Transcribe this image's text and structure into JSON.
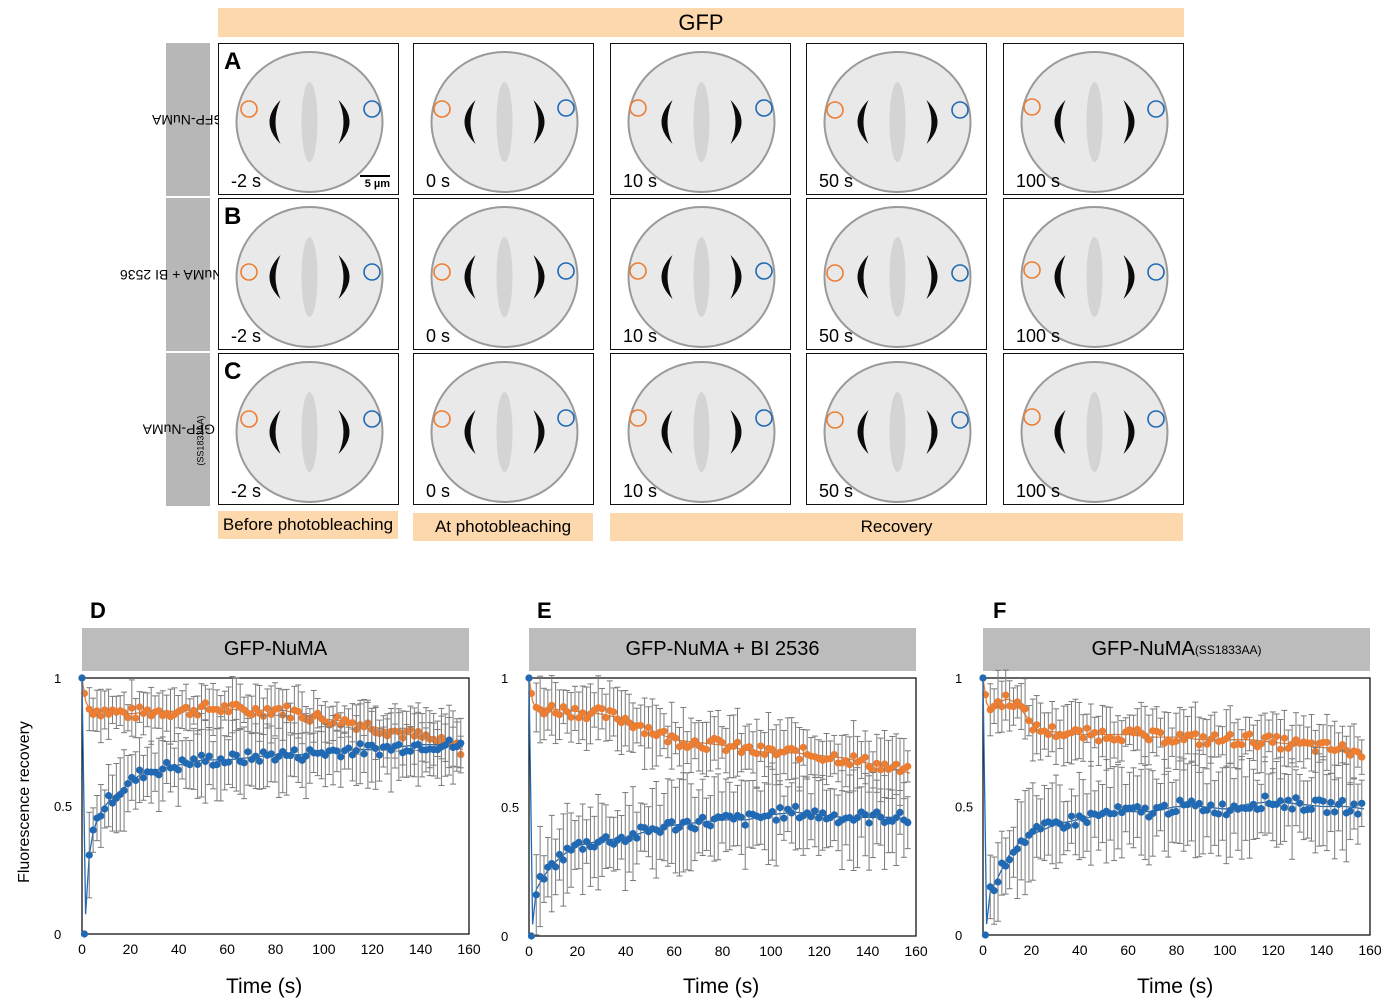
{
  "figure": {
    "top_title": "GFP",
    "rows": [
      {
        "letter": "A",
        "label": "GFP-NuMA",
        "label_sub": ""
      },
      {
        "letter": "B",
        "label": "GFP-NuMA + BI 2536",
        "label_sub": ""
      },
      {
        "letter": "C",
        "label": "GFP-NuMA",
        "label_sub": "(SS1833AA)"
      }
    ],
    "time_labels": [
      "-2 s",
      "0 s",
      "10 s",
      "50 s",
      "100 s"
    ],
    "scale_bar": "5 µm",
    "phases": [
      "Before photobleaching",
      "At photobleaching",
      "Recovery"
    ]
  },
  "charts": {
    "y_axis_label": "Fluorescence recovery",
    "x_axis_label": "Time (s)",
    "panels": [
      {
        "letter": "D",
        "title": "GFP-NuMA",
        "title_sub": ""
      },
      {
        "letter": "E",
        "title": "GFP-NuMA + BI 2536",
        "title_sub": ""
      },
      {
        "letter": "F",
        "title": "GFP-NuMA",
        "title_sub": "(SS1833AA)"
      }
    ],
    "y_ticks": [
      "0",
      "0.5",
      "1"
    ],
    "x_ticks": [
      "0",
      "20",
      "40",
      "60",
      "80",
      "100",
      "120",
      "140",
      "160"
    ]
  },
  "chart_data": [
    {
      "type": "scatter",
      "title": "GFP-NuMA",
      "xlabel": "Time (s)",
      "ylabel": "Fluorescence recovery",
      "xlim": [
        0,
        160
      ],
      "ylim": [
        0,
        1
      ],
      "series": [
        {
          "color": "#ed7d31",
          "error": 0.08,
          "points": [
            [
              0,
              1
            ],
            [
              2,
              0.88
            ],
            [
              10,
              0.87
            ],
            [
              20,
              0.86
            ],
            [
              30,
              0.87
            ],
            [
              40,
              0.87
            ],
            [
              50,
              0.88
            ],
            [
              60,
              0.88
            ],
            [
              70,
              0.87
            ],
            [
              80,
              0.88
            ],
            [
              90,
              0.86
            ],
            [
              100,
              0.84
            ],
            [
              110,
              0.83
            ],
            [
              120,
              0.81
            ],
            [
              130,
              0.79
            ],
            [
              140,
              0.77
            ],
            [
              150,
              0.74
            ],
            [
              158,
              0.72
            ]
          ]
        },
        {
          "color": "#1f69b5",
          "error": 0.12,
          "points": [
            [
              0,
              1
            ],
            [
              1,
              0
            ],
            [
              3,
              0.31
            ],
            [
              5,
              0.42
            ],
            [
              8,
              0.48
            ],
            [
              12,
              0.53
            ],
            [
              16,
              0.56
            ],
            [
              20,
              0.59
            ],
            [
              25,
              0.63
            ],
            [
              30,
              0.64
            ],
            [
              40,
              0.66
            ],
            [
              50,
              0.68
            ],
            [
              60,
              0.68
            ],
            [
              70,
              0.69
            ],
            [
              80,
              0.7
            ],
            [
              90,
              0.7
            ],
            [
              100,
              0.71
            ],
            [
              110,
              0.72
            ],
            [
              120,
              0.72
            ],
            [
              130,
              0.73
            ],
            [
              140,
              0.74
            ],
            [
              150,
              0.74
            ],
            [
              158,
              0.73
            ]
          ]
        }
      ]
    },
    {
      "type": "scatter",
      "title": "GFP-NuMA + BI 2536",
      "xlabel": "Time (s)",
      "ylabel": "Fluorescence recovery",
      "xlim": [
        0,
        160
      ],
      "ylim": [
        0,
        1
      ],
      "series": [
        {
          "color": "#ed7d31",
          "error": 0.1,
          "points": [
            [
              0,
              1
            ],
            [
              2,
              0.88
            ],
            [
              10,
              0.88
            ],
            [
              20,
              0.87
            ],
            [
              30,
              0.86
            ],
            [
              40,
              0.84
            ],
            [
              50,
              0.8
            ],
            [
              60,
              0.76
            ],
            [
              70,
              0.75
            ],
            [
              80,
              0.74
            ],
            [
              90,
              0.72
            ],
            [
              100,
              0.71
            ],
            [
              110,
              0.71
            ],
            [
              120,
              0.7
            ],
            [
              130,
              0.69
            ],
            [
              140,
              0.67
            ],
            [
              150,
              0.65
            ],
            [
              158,
              0.63
            ]
          ]
        },
        {
          "color": "#1f69b5",
          "error": 0.14,
          "points": [
            [
              0,
              1
            ],
            [
              1,
              0
            ],
            [
              3,
              0.18
            ],
            [
              6,
              0.23
            ],
            [
              10,
              0.28
            ],
            [
              15,
              0.32
            ],
            [
              20,
              0.35
            ],
            [
              25,
              0.36
            ],
            [
              30,
              0.37
            ],
            [
              40,
              0.38
            ],
            [
              50,
              0.41
            ],
            [
              60,
              0.43
            ],
            [
              70,
              0.44
            ],
            [
              80,
              0.45
            ],
            [
              90,
              0.45
            ],
            [
              100,
              0.47
            ],
            [
              110,
              0.48
            ],
            [
              120,
              0.47
            ],
            [
              130,
              0.46
            ],
            [
              140,
              0.46
            ],
            [
              150,
              0.46
            ],
            [
              158,
              0.45
            ]
          ]
        }
      ]
    },
    {
      "type": "scatter",
      "title": "GFP-NuMA(SS1833AA)",
      "xlabel": "Time (s)",
      "ylabel": "Fluorescence recovery",
      "xlim": [
        0,
        160
      ],
      "ylim": [
        0,
        1
      ],
      "series": [
        {
          "color": "#ed7d31",
          "error": 0.09,
          "points": [
            [
              0,
              1
            ],
            [
              2,
              0.87
            ],
            [
              6,
              0.9
            ],
            [
              10,
              0.92
            ],
            [
              14,
              0.9
            ],
            [
              18,
              0.85
            ],
            [
              22,
              0.8
            ],
            [
              30,
              0.79
            ],
            [
              40,
              0.78
            ],
            [
              50,
              0.78
            ],
            [
              60,
              0.78
            ],
            [
              70,
              0.77
            ],
            [
              80,
              0.77
            ],
            [
              90,
              0.76
            ],
            [
              100,
              0.76
            ],
            [
              110,
              0.76
            ],
            [
              120,
              0.75
            ],
            [
              130,
              0.74
            ],
            [
              140,
              0.73
            ],
            [
              150,
              0.72
            ],
            [
              158,
              0.7
            ]
          ]
        },
        {
          "color": "#1f69b5",
          "error": 0.15,
          "points": [
            [
              0,
              1
            ],
            [
              1,
              0
            ],
            [
              3,
              0.17
            ],
            [
              6,
              0.22
            ],
            [
              10,
              0.3
            ],
            [
              15,
              0.36
            ],
            [
              20,
              0.39
            ],
            [
              25,
              0.41
            ],
            [
              30,
              0.43
            ],
            [
              40,
              0.45
            ],
            [
              50,
              0.47
            ],
            [
              60,
              0.48
            ],
            [
              70,
              0.48
            ],
            [
              80,
              0.5
            ],
            [
              90,
              0.5
            ],
            [
              100,
              0.49
            ],
            [
              110,
              0.51
            ],
            [
              120,
              0.52
            ],
            [
              130,
              0.51
            ],
            [
              140,
              0.5
            ],
            [
              150,
              0.5
            ],
            [
              158,
              0.49
            ]
          ]
        }
      ]
    }
  ]
}
